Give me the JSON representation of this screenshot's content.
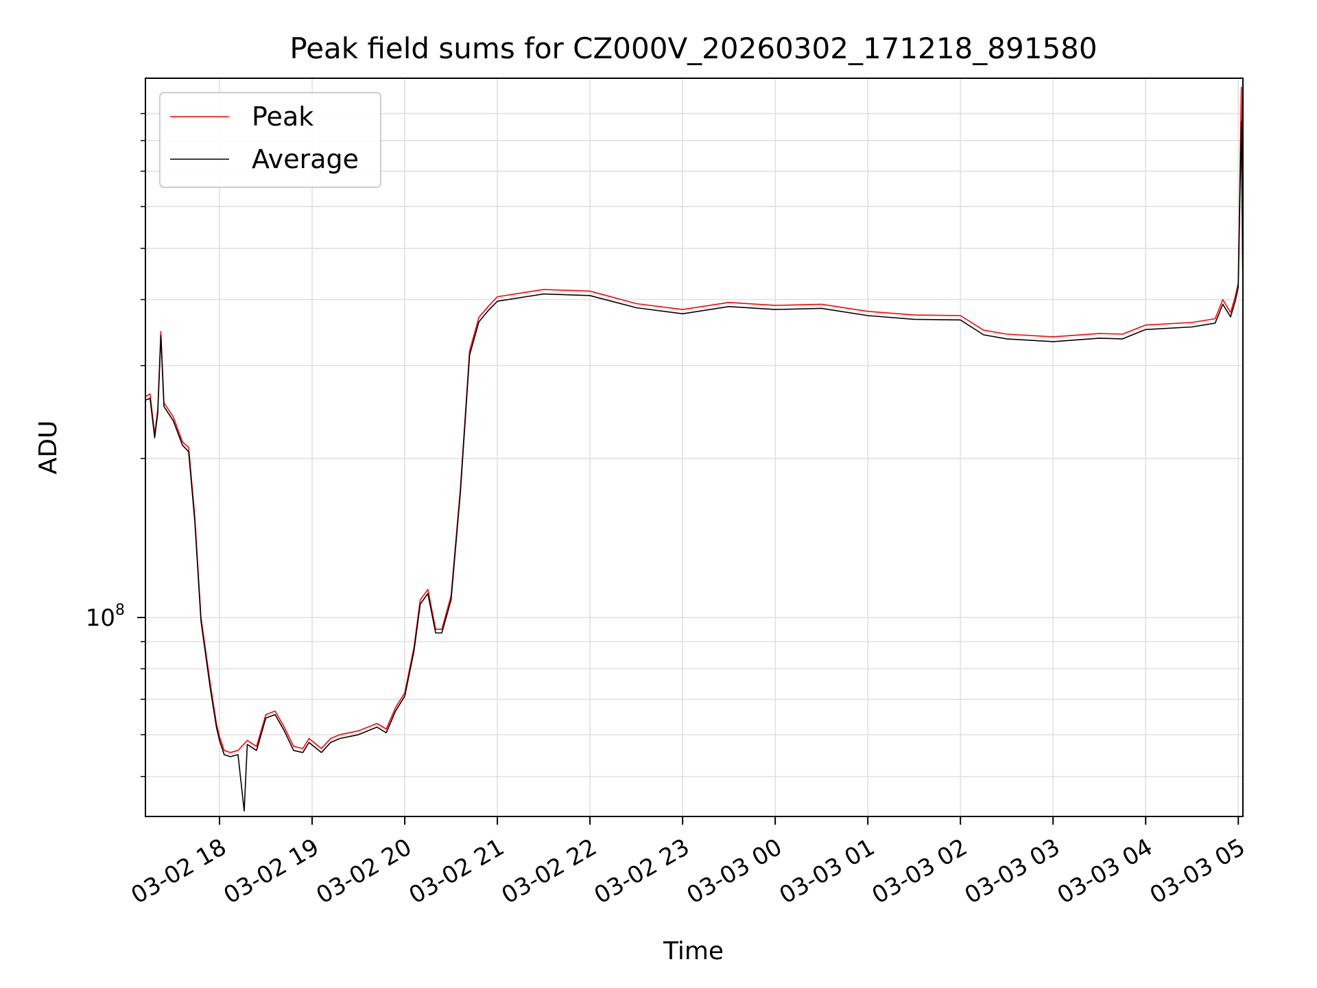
{
  "chart_data": {
    "type": "line",
    "title": "Peak field sums for CZ000V_20260302_171218_891580",
    "xlabel": "Time",
    "ylabel": "ADU",
    "yscale": "log",
    "grid": true,
    "legend_position": "upper left",
    "x_tick_labels": [
      "03-02 18",
      "03-02 19",
      "03-02 20",
      "03-02 21",
      "03-02 22",
      "03-02 23",
      "03-03 00",
      "03-03 01",
      "03-03 02",
      "03-03 03",
      "03-03 04",
      "03-03 05"
    ],
    "y_tick_labels": [
      {
        "base": "10",
        "exp": "8",
        "value": 100000000
      }
    ],
    "xlim": [
      "2026-03-02 17:12",
      "2026-03-03 05:03"
    ],
    "ylim": [
      42000000,
      1050000000
    ],
    "series": [
      {
        "name": "Peak",
        "color": "#ff0000",
        "points": [
          [
            "2026-03-02 17:12",
            262000000
          ],
          [
            "2026-03-02 17:15",
            265000000
          ],
          [
            "2026-03-02 17:18",
            222000000
          ],
          [
            "2026-03-02 17:20",
            248000000
          ],
          [
            "2026-03-02 17:22",
            348000000
          ],
          [
            "2026-03-02 17:24",
            255000000
          ],
          [
            "2026-03-02 17:30",
            240000000
          ],
          [
            "2026-03-02 17:36",
            215000000
          ],
          [
            "2026-03-02 17:40",
            210000000
          ],
          [
            "2026-03-02 17:44",
            155000000
          ],
          [
            "2026-03-02 17:48",
            100000000
          ],
          [
            "2026-03-02 17:54",
            75000000
          ],
          [
            "2026-03-02 17:58",
            63000000
          ],
          [
            "2026-03-02 18:00",
            59500000
          ],
          [
            "2026-03-02 18:03",
            56000000
          ],
          [
            "2026-03-02 18:07",
            55500000
          ],
          [
            "2026-03-02 18:12",
            56000000
          ],
          [
            "2026-03-02 18:18",
            58500000
          ],
          [
            "2026-03-02 18:24",
            57000000
          ],
          [
            "2026-03-02 18:30",
            65500000
          ],
          [
            "2026-03-02 18:36",
            66500000
          ],
          [
            "2026-03-02 18:42",
            62000000
          ],
          [
            "2026-03-02 18:48",
            57000000
          ],
          [
            "2026-03-02 18:54",
            56500000
          ],
          [
            "2026-03-02 18:58",
            59000000
          ],
          [
            "2026-03-02 19:06",
            56500000
          ],
          [
            "2026-03-02 19:12",
            59000000
          ],
          [
            "2026-03-02 19:18",
            60000000
          ],
          [
            "2026-03-02 19:30",
            61000000
          ],
          [
            "2026-03-02 19:42",
            63000000
          ],
          [
            "2026-03-02 19:48",
            61500000
          ],
          [
            "2026-03-02 19:54",
            67500000
          ],
          [
            "2026-03-02 20:00",
            72000000
          ],
          [
            "2026-03-02 20:06",
            88000000
          ],
          [
            "2026-03-02 20:10",
            108000000
          ],
          [
            "2026-03-02 20:15",
            113000000
          ],
          [
            "2026-03-02 20:20",
            95000000
          ],
          [
            "2026-03-02 20:24",
            95000000
          ],
          [
            "2026-03-02 20:30",
            110000000
          ],
          [
            "2026-03-02 20:36",
            175000000
          ],
          [
            "2026-03-02 20:42",
            320000000
          ],
          [
            "2026-03-02 20:48",
            370000000
          ],
          [
            "2026-03-02 20:54",
            388000000
          ],
          [
            "2026-03-02 21:00",
            405000000
          ],
          [
            "2026-03-02 21:30",
            418000000
          ],
          [
            "2026-03-02 22:00",
            415000000
          ],
          [
            "2026-03-02 22:30",
            393000000
          ],
          [
            "2026-03-02 23:00",
            383000000
          ],
          [
            "2026-03-02 23:30",
            395000000
          ],
          [
            "2026-03-03 00:00",
            390000000
          ],
          [
            "2026-03-03 00:30",
            392000000
          ],
          [
            "2026-03-03 01:00",
            380000000
          ],
          [
            "2026-03-03 01:30",
            374000000
          ],
          [
            "2026-03-03 02:00",
            373000000
          ],
          [
            "2026-03-03 02:15",
            350000000
          ],
          [
            "2026-03-03 02:30",
            344000000
          ],
          [
            "2026-03-03 03:00",
            340000000
          ],
          [
            "2026-03-03 03:30",
            345000000
          ],
          [
            "2026-03-03 03:45",
            344000000
          ],
          [
            "2026-03-03 04:00",
            358000000
          ],
          [
            "2026-03-03 04:30",
            362000000
          ],
          [
            "2026-03-03 04:45",
            368000000
          ],
          [
            "2026-03-03 04:50",
            400000000
          ],
          [
            "2026-03-03 04:55",
            378000000
          ],
          [
            "2026-03-03 04:58",
            405000000
          ],
          [
            "2026-03-03 05:00",
            430000000
          ],
          [
            "2026-03-03 05:02",
            1010000000
          ],
          [
            "2026-03-03 05:03",
            420000000
          ]
        ]
      },
      {
        "name": "Average",
        "color": "#000000",
        "points": [
          [
            "2026-03-02 17:12",
            258000000
          ],
          [
            "2026-03-02 17:15",
            260000000
          ],
          [
            "2026-03-02 17:18",
            219000000
          ],
          [
            "2026-03-02 17:20",
            244000000
          ],
          [
            "2026-03-02 17:22",
            342000000
          ],
          [
            "2026-03-02 17:24",
            251000000
          ],
          [
            "2026-03-02 17:30",
            236000000
          ],
          [
            "2026-03-02 17:36",
            212000000
          ],
          [
            "2026-03-02 17:40",
            206000000
          ],
          [
            "2026-03-02 17:44",
            152000000
          ],
          [
            "2026-03-02 17:48",
            98500000
          ],
          [
            "2026-03-02 17:54",
            73500000
          ],
          [
            "2026-03-02 17:58",
            62000000
          ],
          [
            "2026-03-02 18:00",
            58500000
          ],
          [
            "2026-03-02 18:03",
            55000000
          ],
          [
            "2026-03-02 18:07",
            54500000
          ],
          [
            "2026-03-02 18:12",
            55000000
          ],
          [
            "2026-03-02 18:16",
            43000000
          ],
          [
            "2026-03-02 18:18",
            57500000
          ],
          [
            "2026-03-02 18:24",
            56000000
          ],
          [
            "2026-03-02 18:30",
            64500000
          ],
          [
            "2026-03-02 18:36",
            65500000
          ],
          [
            "2026-03-02 18:42",
            61000000
          ],
          [
            "2026-03-02 18:48",
            56000000
          ],
          [
            "2026-03-02 18:54",
            55500000
          ],
          [
            "2026-03-02 18:58",
            58000000
          ],
          [
            "2026-03-02 19:06",
            55500000
          ],
          [
            "2026-03-02 19:12",
            58000000
          ],
          [
            "2026-03-02 19:18",
            59000000
          ],
          [
            "2026-03-02 19:30",
            60000000
          ],
          [
            "2026-03-02 19:42",
            62000000
          ],
          [
            "2026-03-02 19:48",
            60500000
          ],
          [
            "2026-03-02 19:54",
            66500000
          ],
          [
            "2026-03-02 20:00",
            71000000
          ],
          [
            "2026-03-02 20:06",
            86500000
          ],
          [
            "2026-03-02 20:10",
            106000000
          ],
          [
            "2026-03-02 20:15",
            111000000
          ],
          [
            "2026-03-02 20:20",
            93500000
          ],
          [
            "2026-03-02 20:24",
            93500000
          ],
          [
            "2026-03-02 20:30",
            108000000
          ],
          [
            "2026-03-02 20:36",
            172000000
          ],
          [
            "2026-03-02 20:42",
            314000000
          ],
          [
            "2026-03-02 20:48",
            363000000
          ],
          [
            "2026-03-02 20:54",
            381000000
          ],
          [
            "2026-03-02 21:00",
            397000000
          ],
          [
            "2026-03-02 21:30",
            410000000
          ],
          [
            "2026-03-02 22:00",
            407000000
          ],
          [
            "2026-03-02 22:30",
            386000000
          ],
          [
            "2026-03-02 23:00",
            376000000
          ],
          [
            "2026-03-02 23:30",
            388000000
          ],
          [
            "2026-03-03 00:00",
            383000000
          ],
          [
            "2026-03-03 00:30",
            385000000
          ],
          [
            "2026-03-03 01:00",
            373000000
          ],
          [
            "2026-03-03 01:30",
            367000000
          ],
          [
            "2026-03-03 02:00",
            366000000
          ],
          [
            "2026-03-03 02:15",
            343000000
          ],
          [
            "2026-03-03 02:30",
            337000000
          ],
          [
            "2026-03-03 03:00",
            333000000
          ],
          [
            "2026-03-03 03:30",
            338000000
          ],
          [
            "2026-03-03 03:45",
            337000000
          ],
          [
            "2026-03-03 04:00",
            351000000
          ],
          [
            "2026-03-03 04:30",
            355000000
          ],
          [
            "2026-03-03 04:45",
            361000000
          ],
          [
            "2026-03-03 04:50",
            392000000
          ],
          [
            "2026-03-03 04:55",
            371000000
          ],
          [
            "2026-03-03 04:58",
            397000000
          ],
          [
            "2026-03-03 05:00",
            422000000
          ],
          [
            "2026-03-03 05:02",
            870000000
          ],
          [
            "2026-03-03 05:03",
            412000000
          ]
        ]
      }
    ]
  }
}
